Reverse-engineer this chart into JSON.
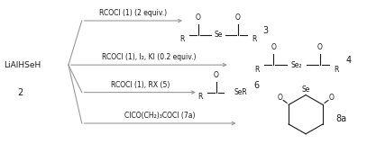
{
  "bg_color": "#ffffff",
  "text_color": "#1a1a1a",
  "gray_color": "#999999",
  "figsize": [
    4.07,
    1.6
  ],
  "dpi": 100,
  "lialhseH_label": "LiAlHSeH",
  "compound2_label": "2",
  "line1_label": "RCOCl (1) (2 equiv.)",
  "line2_label": "RCOCl (1), I₂, KI (0.2 equiv.)",
  "line3_label": "RCOCl (1), RX (5)",
  "line4_label": "ClCO(CH₂)₃COCl (7a)",
  "prod3_label": "3",
  "prod4_label": "4",
  "prod6_label": "6",
  "prod8a_label": "8a",
  "font_size_main": 6.0,
  "font_size_chem": 5.5,
  "font_size_num": 7.0
}
